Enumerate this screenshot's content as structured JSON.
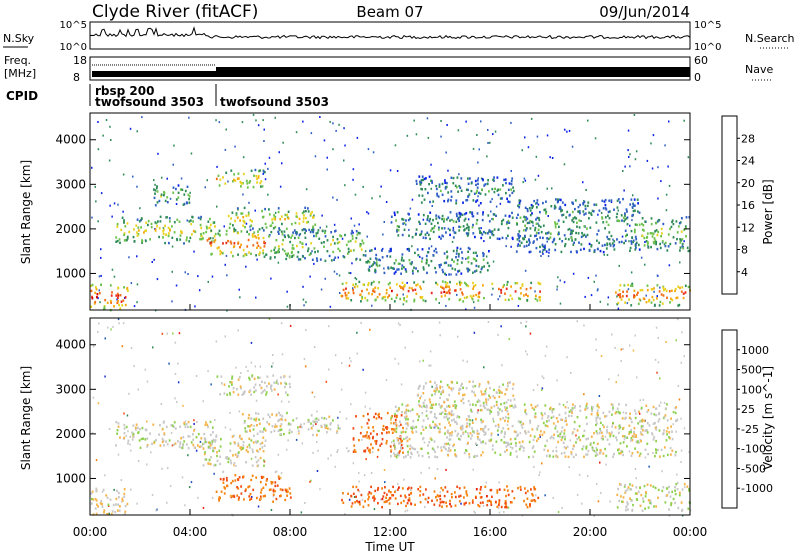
{
  "header": {
    "station": "Clyde River (fitACF)",
    "beam": "Beam 07",
    "date": "09/Jun/2014"
  },
  "side_labels": {
    "nsky": "N.Sky",
    "nsearch": "N.Search",
    "freq": "Freq.",
    "freq_unit": "[MHz]",
    "nave": "Nave",
    "cpid": "CPID"
  },
  "cpid_labels": {
    "first_a": "rbsp 200",
    "first_b": "twofsound 3503",
    "second": "twofsound 3503"
  },
  "noise_ticks": {
    "top": "10^5",
    "bottom": "10^0"
  },
  "freq_ticks": {
    "left_top": "18",
    "left_bottom": "8",
    "right_top": "60",
    "right_bottom": "0"
  },
  "colors": {
    "power": [
      "#0b22e6",
      "#2f5fc4",
      "#2e8b57",
      "#6cc24a",
      "#e8d21e",
      "#f4a70c",
      "#f36b12",
      "#ea2a1a",
      "#d40000"
    ],
    "velocity": [
      "#e81c0c",
      "#f04a12",
      "#f5820e",
      "#f6b44a",
      "#c8c8c8",
      "#8fd14f",
      "#2e8b57",
      "#1e5ab4",
      "#1b2fcc"
    ]
  },
  "chart_data": [
    {
      "type": "heatmap",
      "panel": "power",
      "xlabel": "",
      "ylabel": "Slant Range [km]",
      "xlim": [
        "00:00",
        "24:00"
      ],
      "ylim": [
        180,
        4600
      ],
      "y_ticks": [
        "1000",
        "2000",
        "3000",
        "4000"
      ],
      "colorbar": {
        "label": "Power [dB]",
        "ticks": [
          "4",
          "8",
          "12",
          "16",
          "20",
          "24",
          "28"
        ],
        "range": [
          0,
          30
        ]
      },
      "regions": [
        {
          "t0": 0.0,
          "t1": 1.5,
          "r0": 200,
          "r1": 800,
          "level": 0.95
        },
        {
          "t0": 1.0,
          "t1": 5.0,
          "r0": 1700,
          "r1": 2300,
          "level": 0.55
        },
        {
          "t0": 2.5,
          "t1": 4.0,
          "r0": 2550,
          "r1": 3000,
          "level": 0.35
        },
        {
          "t0": 4.5,
          "t1": 7.0,
          "r0": 1400,
          "r1": 2000,
          "level": 0.8
        },
        {
          "t0": 5.0,
          "t1": 7.0,
          "r0": 2950,
          "r1": 3350,
          "level": 0.6
        },
        {
          "t0": 5.5,
          "t1": 9.0,
          "r0": 2000,
          "r1": 2500,
          "level": 0.55
        },
        {
          "t0": 7.0,
          "t1": 11.0,
          "r0": 1300,
          "r1": 2000,
          "level": 0.45
        },
        {
          "t0": 10.0,
          "t1": 18.0,
          "r0": 400,
          "r1": 850,
          "level": 0.85
        },
        {
          "t0": 11.0,
          "t1": 16.0,
          "r0": 1000,
          "r1": 1600,
          "level": 0.3
        },
        {
          "t0": 13.0,
          "t1": 17.0,
          "r0": 2600,
          "r1": 3200,
          "level": 0.25
        },
        {
          "t0": 12.0,
          "t1": 18.0,
          "r0": 1800,
          "r1": 2400,
          "level": 0.3
        },
        {
          "t0": 17.0,
          "t1": 22.0,
          "r0": 1500,
          "r1": 2700,
          "level": 0.3
        },
        {
          "t0": 21.0,
          "t1": 24.0,
          "r0": 300,
          "r1": 800,
          "level": 0.85
        },
        {
          "t0": 22.0,
          "t1": 24.0,
          "r0": 1500,
          "r1": 2300,
          "level": 0.45
        }
      ]
    },
    {
      "type": "heatmap",
      "panel": "velocity",
      "xlabel": "Time UT",
      "ylabel": "Slant Range [km]",
      "xlim": [
        "00:00",
        "24:00"
      ],
      "ylim": [
        180,
        4600
      ],
      "x_ticks": [
        "00:00",
        "04:00",
        "08:00",
        "12:00",
        "16:00",
        "20:00",
        "00:00"
      ],
      "y_ticks": [
        "1000",
        "2000",
        "3000",
        "4000"
      ],
      "colorbar": {
        "label": "Velocity [m s^-1]",
        "ticks": [
          "-1000",
          "-500",
          "-100",
          "-25",
          "25",
          "100",
          "500",
          "1000"
        ],
        "range": [
          -1200,
          1200
        ]
      },
      "regions": [
        {
          "t0": 0.0,
          "t1": 1.5,
          "r0": 200,
          "r1": 800,
          "level": 0.45
        },
        {
          "t0": 1.0,
          "t1": 5.0,
          "r0": 1700,
          "r1": 2300,
          "level": 0.5
        },
        {
          "t0": 4.5,
          "t1": 7.0,
          "r0": 1300,
          "r1": 2000,
          "level": 0.5
        },
        {
          "t0": 5.0,
          "t1": 8.0,
          "r0": 2900,
          "r1": 3350,
          "level": 0.5
        },
        {
          "t0": 5.0,
          "t1": 8.0,
          "r0": 500,
          "r1": 1100,
          "level": 0.2
        },
        {
          "t0": 6.0,
          "t1": 10.0,
          "r0": 2000,
          "r1": 2500,
          "level": 0.5
        },
        {
          "t0": 10.5,
          "t1": 12.5,
          "r0": 1600,
          "r1": 2500,
          "level": 0.2
        },
        {
          "t0": 10.0,
          "t1": 18.0,
          "r0": 380,
          "r1": 850,
          "level": 0.18
        },
        {
          "t0": 12.0,
          "t1": 23.5,
          "r0": 1500,
          "r1": 2700,
          "level": 0.5
        },
        {
          "t0": 13.0,
          "t1": 17.0,
          "r0": 2600,
          "r1": 3200,
          "level": 0.5
        },
        {
          "t0": 21.0,
          "t1": 24.0,
          "r0": 300,
          "r1": 900,
          "level": 0.5
        }
      ]
    }
  ]
}
